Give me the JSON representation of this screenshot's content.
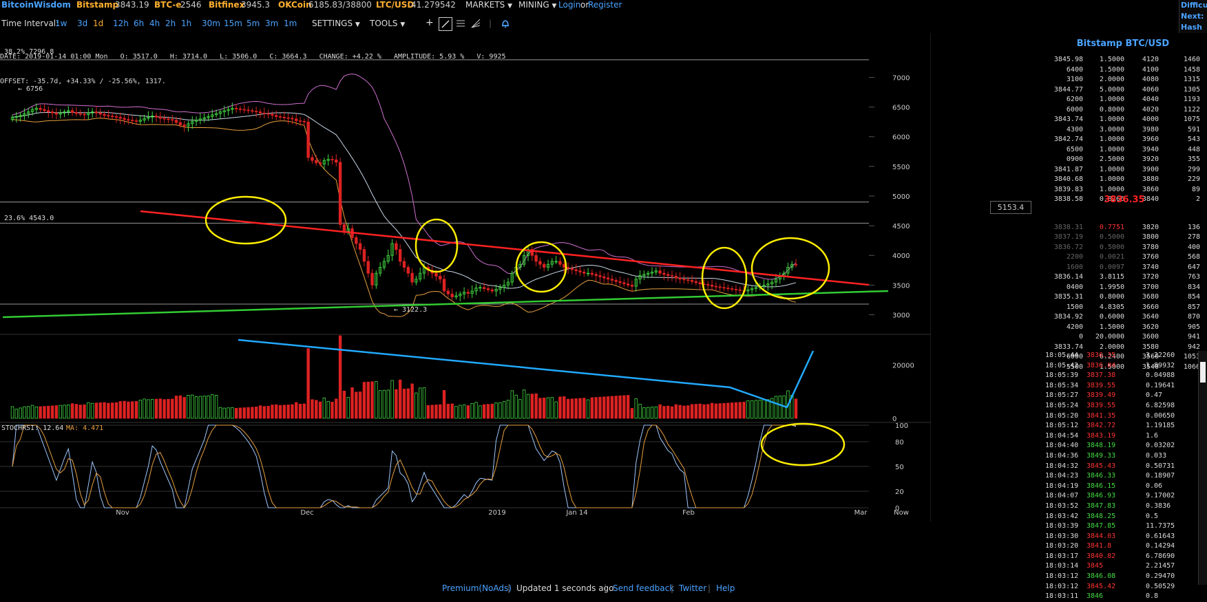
{
  "topbar": {
    "brand": "BitcoinWisdom",
    "tickers": [
      {
        "exchange": "Bitstamp",
        "price": "3843.19"
      },
      {
        "exchange": "BTC-e",
        "price": "2546"
      },
      {
        "exchange": "Bitfinex",
        "price": "3945.3"
      },
      {
        "exchange": "OKCoin",
        "price": "6185.83/38800"
      },
      {
        "exchange": "LTC/USD",
        "price": "41.279542"
      }
    ],
    "markets": "MARKETS",
    "mining": "MINING",
    "login": "Login",
    "or": "or",
    "register": "Register",
    "difficulty": [
      "Difficu",
      "Next:",
      "Hash R"
    ]
  },
  "toolbar": {
    "time_interval_label": "Time Interval:",
    "intervals": [
      "1w",
      "3d",
      "1d",
      "12h",
      "6h",
      "4h",
      "2h",
      "1h",
      "30m",
      "15m",
      "5m",
      "3m",
      "1m"
    ],
    "active_interval": "1d",
    "settings": "SETTINGS",
    "tools": "TOOLS"
  },
  "info": {
    "line1": "DATE: 2019-01-14 01:00 Mon   O: 3517.0   H: 3714.0   L: 3506.0   C: 3664.3   CHANGE: +4.22 %   AMPLITUDE: 5.93 %   V: 9925",
    "line2": "OFFSET: -35.7d, +34.33% / -25.56%, 1317.",
    "fib_382": "38.2% 7296.8",
    "fib_236": "23.6% 4543.0",
    "high_label": "← 6756",
    "low_label": "← 3122.3",
    "price_tag": "5153.4",
    "stochrsi_label": "STOCHRSI: 12.64",
    "ma_label": "MA: 4.471"
  },
  "chart_data": [
    {
      "type": "candlestick",
      "title": "",
      "x_ticks": [
        "Nov",
        "Dec",
        "2019",
        "Jan 14",
        "Feb",
        "Mar",
        "Now"
      ],
      "y_ticks": [
        3000,
        3500,
        4000,
        4500,
        5000,
        5500,
        6000,
        6500,
        7000
      ],
      "ylim": [
        2820,
        7400
      ],
      "close": [
        6330,
        6340,
        6360,
        6390,
        6420,
        6460,
        6480,
        6460,
        6440,
        6420,
        6400,
        6380,
        6400,
        6420,
        6440,
        6410,
        6390,
        6380,
        6370,
        6400,
        6420,
        6400,
        6380,
        6360,
        6350,
        6340,
        6330,
        6310,
        6290,
        6280,
        6270,
        6260,
        6280,
        6310,
        6330,
        6350,
        6330,
        6310,
        6300,
        6290,
        6280,
        6240,
        6200,
        6180,
        6220,
        6260,
        6280,
        6300,
        6320,
        6340,
        6370,
        6390,
        6420,
        6440,
        6460,
        6480,
        6470,
        6460,
        6450,
        6440,
        6430,
        6420,
        6400,
        6390,
        6380,
        6360,
        6340,
        6330,
        6320,
        6310,
        6300,
        6270,
        6260,
        6250,
        5650,
        5600,
        5560,
        5540,
        5600,
        5620,
        5610,
        5570,
        4520,
        4400,
        4450,
        4300,
        4200,
        4100,
        3900,
        3700,
        3500,
        3700,
        3800,
        3900,
        4000,
        4200,
        4100,
        3900,
        3800,
        3700,
        3550,
        3600,
        3700,
        3800,
        3750,
        3700,
        3650,
        3600,
        3400,
        3350,
        3300,
        3320,
        3350,
        3380,
        3360,
        3400,
        3450,
        3460,
        3440,
        3420,
        3400,
        3430,
        3460,
        3500,
        3550,
        3700,
        3800,
        3850,
        4000,
        4100,
        4000,
        3900,
        3850,
        3800,
        3850,
        3900,
        3900,
        3850,
        3800,
        3780,
        3760,
        3740,
        3720,
        3700,
        3700,
        3680,
        3660,
        3640,
        3620,
        3600,
        3580,
        3560,
        3540,
        3520,
        3500,
        3480,
        3600,
        3660,
        3680,
        3700,
        3720,
        3740,
        3700,
        3680,
        3660,
        3650,
        3620,
        3600,
        3590,
        3580,
        3560,
        3540,
        3520,
        3510,
        3500,
        3480,
        3470,
        3460,
        3450,
        3440,
        3430,
        3420,
        3410,
        3400,
        3420,
        3440,
        3460,
        3480,
        3500,
        3520,
        3550,
        3600,
        3650,
        3700,
        3800,
        3850,
        3843
      ],
      "volume_scale_ticks": [
        0,
        20000
      ],
      "volume_peak": 31000,
      "stochrsi_ticks": [
        0,
        20,
        50,
        80,
        100
      ],
      "indicators": [
        "Bollinger Bands",
        "Volume",
        "StochRSI"
      ]
    }
  ],
  "orderbook": {
    "title": "Bitstamp BTC/USD",
    "asks": [
      [
        "3845.98",
        "1.5000",
        "4120",
        "1460"
      ],
      [
        "6400",
        "1.5000",
        "4100",
        "1458"
      ],
      [
        "3100",
        "2.0000",
        "4080",
        "1315"
      ],
      [
        "3844.77",
        "5.0000",
        "4060",
        "1305"
      ],
      [
        "6200",
        "1.0000",
        "4040",
        "1193"
      ],
      [
        "6000",
        "0.8000",
        "4020",
        "1122"
      ],
      [
        "3843.74",
        "1.0000",
        "4000",
        "1075"
      ],
      [
        "4300",
        "3.0000",
        "3980",
        "591"
      ],
      [
        "3842.74",
        "1.0000",
        "3960",
        "543"
      ],
      [
        "6500",
        "1.0000",
        "3940",
        "448"
      ],
      [
        "0900",
        "2.5000",
        "3920",
        "355"
      ],
      [
        "3841.87",
        "1.0000",
        "3900",
        "299"
      ],
      [
        "3840.68",
        "1.0000",
        "3880",
        "229"
      ],
      [
        "3839.83",
        "1.0000",
        "3860",
        "89"
      ],
      [
        "3838.58",
        "0.8266",
        "3840",
        "2"
      ]
    ],
    "mid": "3836.35",
    "bids": [
      [
        "3838.31",
        "0.7751",
        "3820",
        "136"
      ],
      [
        "3837.19",
        "0.5000",
        "3800",
        "278"
      ],
      [
        "3836.72",
        "0.5000",
        "3780",
        "400"
      ],
      [
        "2200",
        "0.0021",
        "3760",
        "568"
      ],
      [
        "1600",
        "0.0097",
        "3740",
        "647"
      ],
      [
        "3836.14",
        "3.8115",
        "3720",
        "763"
      ],
      [
        "0400",
        "1.9950",
        "3700",
        "834"
      ],
      [
        "3835.31",
        "0.8000",
        "3680",
        "854"
      ],
      [
        "1500",
        "4.8305",
        "3660",
        "857"
      ],
      [
        "3834.92",
        "0.6000",
        "3640",
        "870"
      ],
      [
        "4200",
        "1.5000",
        "3620",
        "905"
      ],
      [
        "0",
        "20.0000",
        "3600",
        "941"
      ],
      [
        "3833.74",
        "2.0000",
        "3580",
        "942"
      ],
      [
        "6000",
        "6.2400",
        "3560",
        "1053"
      ],
      [
        "5500",
        "1.5000",
        "3540",
        "1066"
      ]
    ]
  },
  "trades": [
    [
      "18:05:44",
      "3836.35",
      "3.22260",
      "dn"
    ],
    [
      "18:05:42",
      "3836.04",
      "1.89932",
      "dn"
    ],
    [
      "18:05:39",
      "3837.38",
      "0.04988",
      "dn"
    ],
    [
      "18:05:34",
      "3839.55",
      "0.19641",
      "dn"
    ],
    [
      "18:05:27",
      "3839.49",
      "0.47",
      "dn"
    ],
    [
      "18:05:24",
      "3839.55",
      "6.82598",
      "dn"
    ],
    [
      "18:05:20",
      "3841.35",
      "0.00650",
      "dn"
    ],
    [
      "18:05:12",
      "3842.72",
      "1.19185",
      "dn"
    ],
    [
      "18:04:54",
      "3843.19",
      "1.6",
      "dn"
    ],
    [
      "18:04:40",
      "3848.19",
      "0.03202",
      "up"
    ],
    [
      "18:04:36",
      "3849.33",
      "0.033",
      "up"
    ],
    [
      "18:04:32",
      "3845.43",
      "0.50731",
      "dn"
    ],
    [
      "18:04:23",
      "3846.33",
      "0.18907",
      "up"
    ],
    [
      "18:04:19",
      "3846.15",
      "0.06",
      "up"
    ],
    [
      "18:04:07",
      "3846.93",
      "9.17002",
      "up"
    ],
    [
      "18:03:52",
      "3847.83",
      "0.3836",
      "up"
    ],
    [
      "18:03:42",
      "3848.25",
      "0.5",
      "up"
    ],
    [
      "18:03:39",
      "3847.85",
      "11.7375",
      "up"
    ],
    [
      "18:03:30",
      "3844.03",
      "0.61643",
      "dn"
    ],
    [
      "18:03:20",
      "3841.8",
      "0.14294",
      "dn"
    ],
    [
      "18:03:17",
      "3840.82",
      "6.78690",
      "dn"
    ],
    [
      "18:03:14",
      "3845",
      "2.21457",
      "dn"
    ],
    [
      "18:03:12",
      "3846.08",
      "0.29470",
      "up"
    ],
    [
      "18:03:12",
      "3845.42",
      "0.50529",
      "dn"
    ],
    [
      "18:03:11",
      "3846",
      "0.8",
      "up"
    ]
  ],
  "footer": {
    "premium": "Premium(NoAds)",
    "updated": "Updated 1 seconds ago",
    "feedback": "Send feedback",
    "twitter": "Twitter",
    "help": "Help"
  },
  "colors": {
    "up": "#44dd44",
    "down": "#dd2222",
    "boll_mid": "#c8d8e8",
    "boll_upper": "#d070d0",
    "boll_lower": "#e8a040",
    "trend_red": "#ff2222",
    "trend_green": "#33cc33",
    "trend_blue": "#22aaff",
    "highlight_circle": "#ffee00"
  }
}
